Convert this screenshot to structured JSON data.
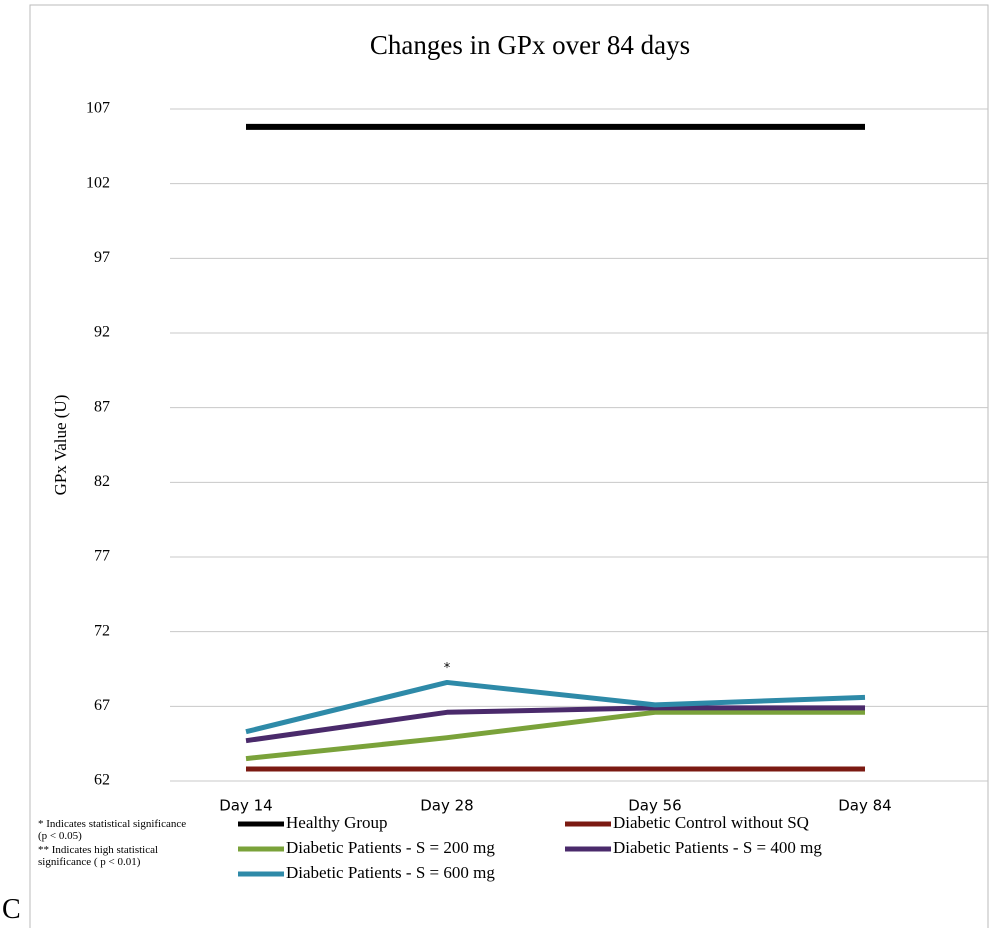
{
  "chart_data": {
    "type": "line",
    "title": "Changes in GPx over 84 days",
    "y_label": "GPx Value (U)",
    "categories": [
      "Day 14",
      "Day 28",
      "Day 56",
      "Day 84"
    ],
    "series": [
      {
        "name": "Healthy Group",
        "color": "#000000",
        "values": [
          105.8,
          105.8,
          105.8,
          105.8
        ]
      },
      {
        "name": "Diabetic Control without SQ",
        "color": "#7b1a12",
        "values": [
          62.8,
          62.8,
          62.8,
          62.8
        ]
      },
      {
        "name": "Diabetic Patients - S = 200 mg",
        "color": "#7aa23a",
        "values": [
          63.5,
          64.9,
          66.6,
          66.6
        ]
      },
      {
        "name": "Diabetic Patients - S = 400 mg",
        "color": "#4a2a6b",
        "values": [
          64.7,
          66.6,
          66.9,
          66.9
        ]
      },
      {
        "name": "Diabetic Patients - S = 600 mg",
        "color": "#2e8aa8",
        "values": [
          65.3,
          68.6,
          67.1,
          67.6
        ]
      }
    ],
    "annotation": "*",
    "ylim": [
      62,
      107
    ],
    "yticks": [
      62,
      67,
      72,
      77,
      82,
      87,
      92,
      97,
      102,
      107
    ],
    "grid": true,
    "notes": [
      "* Indicates statistical significance (p < 0.05)",
      "** Indicates high statistical significance ( p < 0.01)"
    ]
  },
  "caption_fragment": "C"
}
